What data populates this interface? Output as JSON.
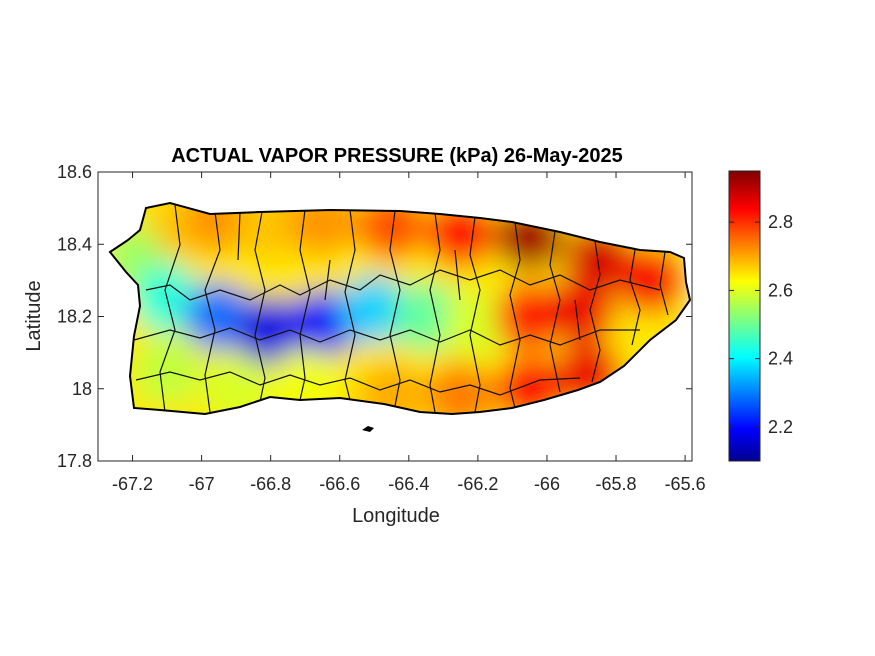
{
  "chart_data": {
    "type": "heatmap",
    "title": "ACTUAL VAPOR PRESSURE (kPa) 26-May-2025",
    "xlabel": "Longitude",
    "ylabel": "Latitude",
    "xlim": [
      -67.3,
      -65.58
    ],
    "ylim": [
      17.8,
      18.6
    ],
    "xticks": [
      "-67.2",
      "-67",
      "-66.8",
      "-66.6",
      "-66.4",
      "-66.2",
      "-66",
      "-65.8",
      "-65.6"
    ],
    "xtick_values": [
      -67.2,
      -67.0,
      -66.8,
      -66.6,
      -66.4,
      -66.2,
      -66.0,
      -65.8,
      -65.6
    ],
    "yticks": [
      "17.8",
      "18",
      "18.2",
      "18.4",
      "18.6"
    ],
    "ytick_values": [
      17.8,
      18.0,
      18.2,
      18.4,
      18.6
    ],
    "colorbar": {
      "colormap": "jet",
      "range": [
        2.1,
        2.95
      ],
      "ticks": [
        "2.2",
        "2.4",
        "2.6",
        "2.8"
      ],
      "tick_values": [
        2.2,
        2.4,
        2.6,
        2.8
      ]
    },
    "region": "Puerto Rico",
    "field_samples": [
      {
        "lon": -67.18,
        "lat": 18.36,
        "value": 2.55
      },
      {
        "lon": -67.05,
        "lat": 18.45,
        "value": 2.68
      },
      {
        "lon": -66.95,
        "lat": 18.47,
        "value": 2.72
      },
      {
        "lon": -66.8,
        "lat": 18.45,
        "value": 2.68
      },
      {
        "lon": -66.65,
        "lat": 18.46,
        "value": 2.72
      },
      {
        "lon": -66.45,
        "lat": 18.45,
        "value": 2.78
      },
      {
        "lon": -66.25,
        "lat": 18.43,
        "value": 2.84
      },
      {
        "lon": -66.05,
        "lat": 18.42,
        "value": 2.92
      },
      {
        "lon": -65.85,
        "lat": 18.36,
        "value": 2.88
      },
      {
        "lon": -65.7,
        "lat": 18.3,
        "value": 2.85
      },
      {
        "lon": -67.1,
        "lat": 18.25,
        "value": 2.45
      },
      {
        "lon": -66.95,
        "lat": 18.2,
        "value": 2.3
      },
      {
        "lon": -66.8,
        "lat": 18.16,
        "value": 2.18
      },
      {
        "lon": -66.65,
        "lat": 18.18,
        "value": 2.2
      },
      {
        "lon": -66.5,
        "lat": 18.22,
        "value": 2.38
      },
      {
        "lon": -66.35,
        "lat": 18.2,
        "value": 2.5
      },
      {
        "lon": -66.2,
        "lat": 18.18,
        "value": 2.6
      },
      {
        "lon": -66.05,
        "lat": 18.2,
        "value": 2.82
      },
      {
        "lon": -65.9,
        "lat": 18.22,
        "value": 2.86
      },
      {
        "lon": -67.1,
        "lat": 18.05,
        "value": 2.58
      },
      {
        "lon": -66.9,
        "lat": 18.0,
        "value": 2.6
      },
      {
        "lon": -66.7,
        "lat": 18.02,
        "value": 2.62
      },
      {
        "lon": -66.45,
        "lat": 17.98,
        "value": 2.7
      },
      {
        "lon": -66.25,
        "lat": 17.98,
        "value": 2.74
      },
      {
        "lon": -66.05,
        "lat": 18.0,
        "value": 2.84
      },
      {
        "lon": -65.88,
        "lat": 18.04,
        "value": 2.86
      }
    ],
    "grid": false,
    "legend": "colorbar-right"
  }
}
